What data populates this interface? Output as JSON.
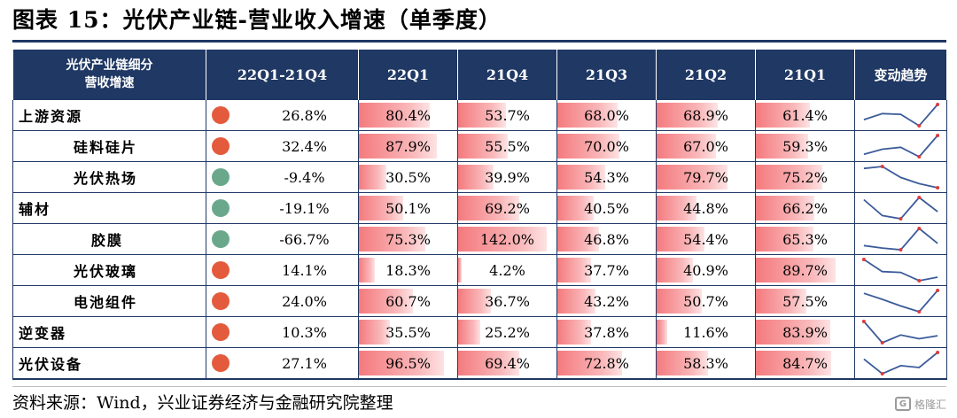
{
  "title": "图表 15：光伏产业链-营业收入增速（单季度）",
  "header": {
    "label_line1": "光伏产业链细分",
    "label_line2": "营收增速",
    "growth": "22Q1-21Q4",
    "periods": [
      "22Q1",
      "21Q4",
      "21Q3",
      "21Q2",
      "21Q1"
    ],
    "trend": "变动趋势"
  },
  "colors": {
    "header_bg": "#1f3864",
    "dot_up": "#e35b3c",
    "dot_down": "#6aa88c",
    "bar": "#f47a7e",
    "sparkline": "#3b5b9a",
    "sparkline_last": "#e03a3a"
  },
  "rows": [
    {
      "segment": "上游资源",
      "level": 0,
      "growth": "26.8%",
      "direction": "up",
      "values": [
        "80.4%",
        "53.7%",
        "68.0%",
        "68.9%",
        "61.4%"
      ],
      "nums": [
        80.4,
        53.7,
        68.0,
        68.9,
        61.4
      ]
    },
    {
      "segment": "硅料硅片",
      "level": 1,
      "growth": "32.4%",
      "direction": "up",
      "values": [
        "87.9%",
        "55.5%",
        "70.0%",
        "67.0%",
        "59.3%"
      ],
      "nums": [
        87.9,
        55.5,
        70.0,
        67.0,
        59.3
      ]
    },
    {
      "segment": "光伏热场",
      "level": 1,
      "growth": "-9.4%",
      "direction": "down",
      "values": [
        "30.5%",
        "39.9%",
        "54.3%",
        "79.7%",
        "75.2%"
      ],
      "nums": [
        30.5,
        39.9,
        54.3,
        79.7,
        75.2
      ]
    },
    {
      "segment": "辅材",
      "level": 0,
      "growth": "-19.1%",
      "direction": "down",
      "values": [
        "50.1%",
        "69.2%",
        "40.5%",
        "44.8%",
        "66.2%"
      ],
      "nums": [
        50.1,
        69.2,
        40.5,
        44.8,
        66.2
      ]
    },
    {
      "segment": "胶膜",
      "level": 2,
      "growth": "-66.7%",
      "direction": "down",
      "values": [
        "75.3%",
        "142.0%",
        "46.8%",
        "54.4%",
        "65.3%"
      ],
      "nums": [
        75.3,
        142.0,
        46.8,
        54.4,
        65.3
      ]
    },
    {
      "segment": "光伏玻璃",
      "level": 1,
      "growth": "14.1%",
      "direction": "up",
      "values": [
        "18.3%",
        "4.2%",
        "37.7%",
        "40.9%",
        "89.7%"
      ],
      "nums": [
        18.3,
        4.2,
        37.7,
        40.9,
        89.7
      ]
    },
    {
      "segment": "电池组件",
      "level": 1,
      "growth": "24.0%",
      "direction": "up",
      "values": [
        "60.7%",
        "36.7%",
        "43.2%",
        "50.7%",
        "57.5%"
      ],
      "nums": [
        60.7,
        36.7,
        43.2,
        50.7,
        57.5
      ]
    },
    {
      "segment": "逆变器",
      "level": 0,
      "growth": "10.3%",
      "direction": "up",
      "values": [
        "35.5%",
        "25.2%",
        "37.8%",
        "11.6%",
        "83.9%"
      ],
      "nums": [
        35.5,
        25.2,
        37.8,
        11.6,
        83.9
      ]
    },
    {
      "segment": "光伏设备",
      "level": 0,
      "growth": "27.1%",
      "direction": "up",
      "values": [
        "96.5%",
        "69.4%",
        "72.8%",
        "58.3%",
        "84.7%"
      ],
      "nums": [
        96.5,
        69.4,
        72.8,
        58.3,
        84.7
      ]
    }
  ],
  "source": "资料来源：Wind，兴业证券经济与金融研究院整理",
  "watermark": "格隆汇"
}
